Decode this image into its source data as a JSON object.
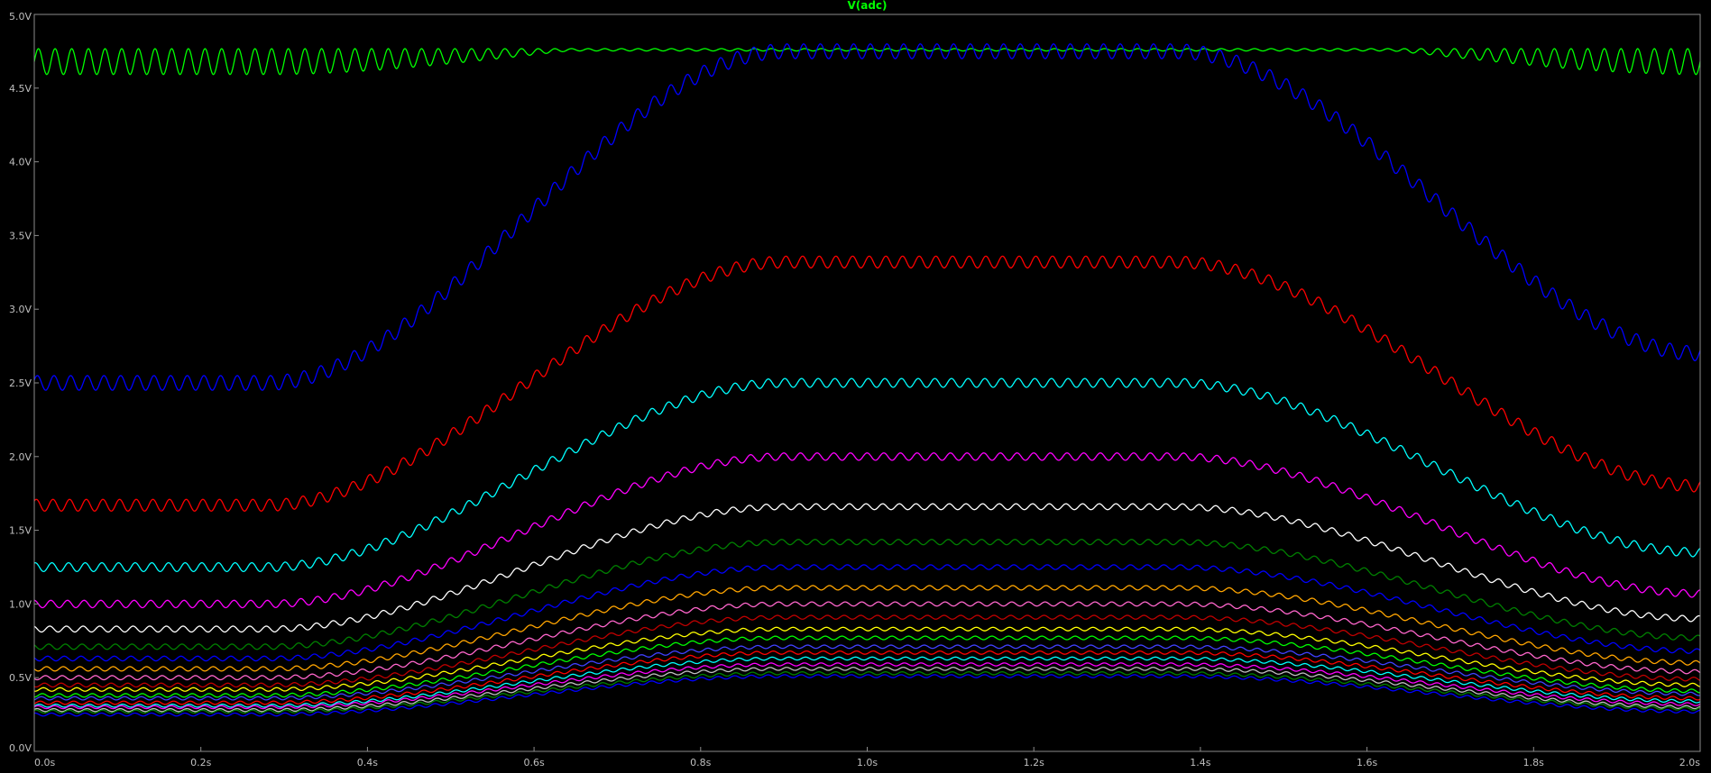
{
  "chart_data": {
    "type": "line",
    "title": "V(adc)",
    "title_color": "#00ff00",
    "xlabel": "",
    "ylabel": "",
    "xlim": [
      0,
      2.0
    ],
    "ylim": [
      0,
      5.0
    ],
    "grid": false,
    "x_ticks": [
      {
        "value": 0.0,
        "label": "0.0s"
      },
      {
        "value": 0.2,
        "label": "0.2s"
      },
      {
        "value": 0.4,
        "label": "0.4s"
      },
      {
        "value": 0.6,
        "label": "0.6s"
      },
      {
        "value": 0.8,
        "label": "0.8s"
      },
      {
        "value": 1.0,
        "label": "1.0s"
      },
      {
        "value": 1.2,
        "label": "1.2s"
      },
      {
        "value": 1.4,
        "label": "1.4s"
      },
      {
        "value": 1.6,
        "label": "1.6s"
      },
      {
        "value": 1.8,
        "label": "1.8s"
      },
      {
        "value": 2.0,
        "label": "2.0s"
      }
    ],
    "y_ticks": [
      {
        "value": 0.0,
        "label": "0.0V"
      },
      {
        "value": 0.5,
        "label": "0.5V"
      },
      {
        "value": 1.0,
        "label": "1.0V"
      },
      {
        "value": 1.5,
        "label": "1.5V"
      },
      {
        "value": 2.0,
        "label": "2.0V"
      },
      {
        "value": 2.5,
        "label": "2.5V"
      },
      {
        "value": 3.0,
        "label": "3.0V"
      },
      {
        "value": 3.5,
        "label": "3.5V"
      },
      {
        "value": 4.0,
        "label": "4.0V"
      },
      {
        "value": 4.5,
        "label": "4.5V"
      },
      {
        "value": 5.0,
        "label": "5.0V"
      }
    ],
    "ripple_period_s": 0.02,
    "series": [
      {
        "color": "#00ff00",
        "shape": "saturated",
        "low": 4.68,
        "high": 4.76,
        "end": 4.68,
        "ripple": 0.08
      },
      {
        "color": "#0000ff",
        "low": 2.5,
        "high": 4.75,
        "end": 2.7,
        "ripple": 0.05
      },
      {
        "color": "#ff0000",
        "low": 1.67,
        "high": 3.32,
        "end": 1.8,
        "ripple": 0.04
      },
      {
        "color": "#00ffff",
        "low": 1.25,
        "high": 2.5,
        "end": 1.35,
        "ripple": 0.03
      },
      {
        "color": "#ff00ff",
        "low": 1.0,
        "high": 2.0,
        "end": 1.07,
        "ripple": 0.025
      },
      {
        "color": "#ffffff",
        "low": 0.83,
        "high": 1.66,
        "end": 0.9,
        "ripple": 0.02
      },
      {
        "color": "#008000",
        "low": 0.71,
        "high": 1.42,
        "end": 0.77,
        "ripple": 0.018
      },
      {
        "color": "#0000ff",
        "low": 0.63,
        "high": 1.25,
        "end": 0.68,
        "ripple": 0.016
      },
      {
        "color": "#ffa500",
        "low": 0.56,
        "high": 1.11,
        "end": 0.6,
        "ripple": 0.015
      },
      {
        "color": "#ff66cc",
        "low": 0.5,
        "high": 1.0,
        "end": 0.54,
        "ripple": 0.014
      },
      {
        "color": "#c00000",
        "low": 0.45,
        "high": 0.91,
        "end": 0.49,
        "ripple": 0.013
      },
      {
        "color": "#ffff00",
        "low": 0.42,
        "high": 0.83,
        "end": 0.45,
        "ripple": 0.012
      },
      {
        "color": "#00ff00",
        "low": 0.38,
        "high": 0.77,
        "end": 0.41,
        "ripple": 0.012
      },
      {
        "color": "#4040ff",
        "low": 0.36,
        "high": 0.71,
        "end": 0.39,
        "ripple": 0.011
      },
      {
        "color": "#ff0000",
        "low": 0.33,
        "high": 0.67,
        "end": 0.36,
        "ripple": 0.011
      },
      {
        "color": "#00ffff",
        "low": 0.31,
        "high": 0.63,
        "end": 0.34,
        "ripple": 0.01
      },
      {
        "color": "#ff00ff",
        "low": 0.3,
        "high": 0.59,
        "end": 0.32,
        "ripple": 0.01
      },
      {
        "color": "#c0c0c0",
        "low": 0.28,
        "high": 0.56,
        "end": 0.3,
        "ripple": 0.01
      },
      {
        "color": "#008000",
        "low": 0.27,
        "high": 0.53,
        "end": 0.29,
        "ripple": 0.01
      },
      {
        "color": "#0000ff",
        "low": 0.25,
        "high": 0.51,
        "end": 0.27,
        "ripple": 0.01
      }
    ]
  }
}
